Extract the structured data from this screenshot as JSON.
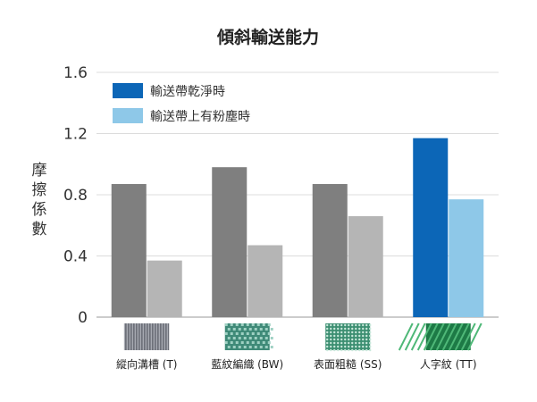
{
  "chart_data": {
    "type": "bar",
    "title": "傾斜輸送能力",
    "ylabel": "摩擦係數",
    "ylim": [
      0,
      1.6
    ],
    "yticks": [
      "0",
      "0.4",
      "0.8",
      "1.2",
      "1.6"
    ],
    "ytick_values": [
      0,
      0.4,
      0.8,
      1.2,
      1.6
    ],
    "categories": [
      "縱向溝槽 (T)",
      "藍紋編織 (BW)",
      "表面粗糙 (SS)",
      "人字紋 (TT)"
    ],
    "series": [
      {
        "name": "輸送帶乾淨時",
        "values": [
          0.87,
          0.98,
          0.87,
          1.17
        ]
      },
      {
        "name": "輸送帶上有粉塵時",
        "values": [
          0.37,
          0.47,
          0.66,
          0.77
        ]
      }
    ],
    "bar_colors": {
      "clean_default": "#7f7f7f",
      "dusty_default": "#b5b5b5",
      "clean_highlight": "#0c66b7",
      "dusty_highlight": "#8ec8e8"
    },
    "legend_colors": [
      "#0c66b7",
      "#8ec8e8"
    ],
    "highlight_category_index": 3,
    "legend_position": "top-left",
    "grid": true
  }
}
